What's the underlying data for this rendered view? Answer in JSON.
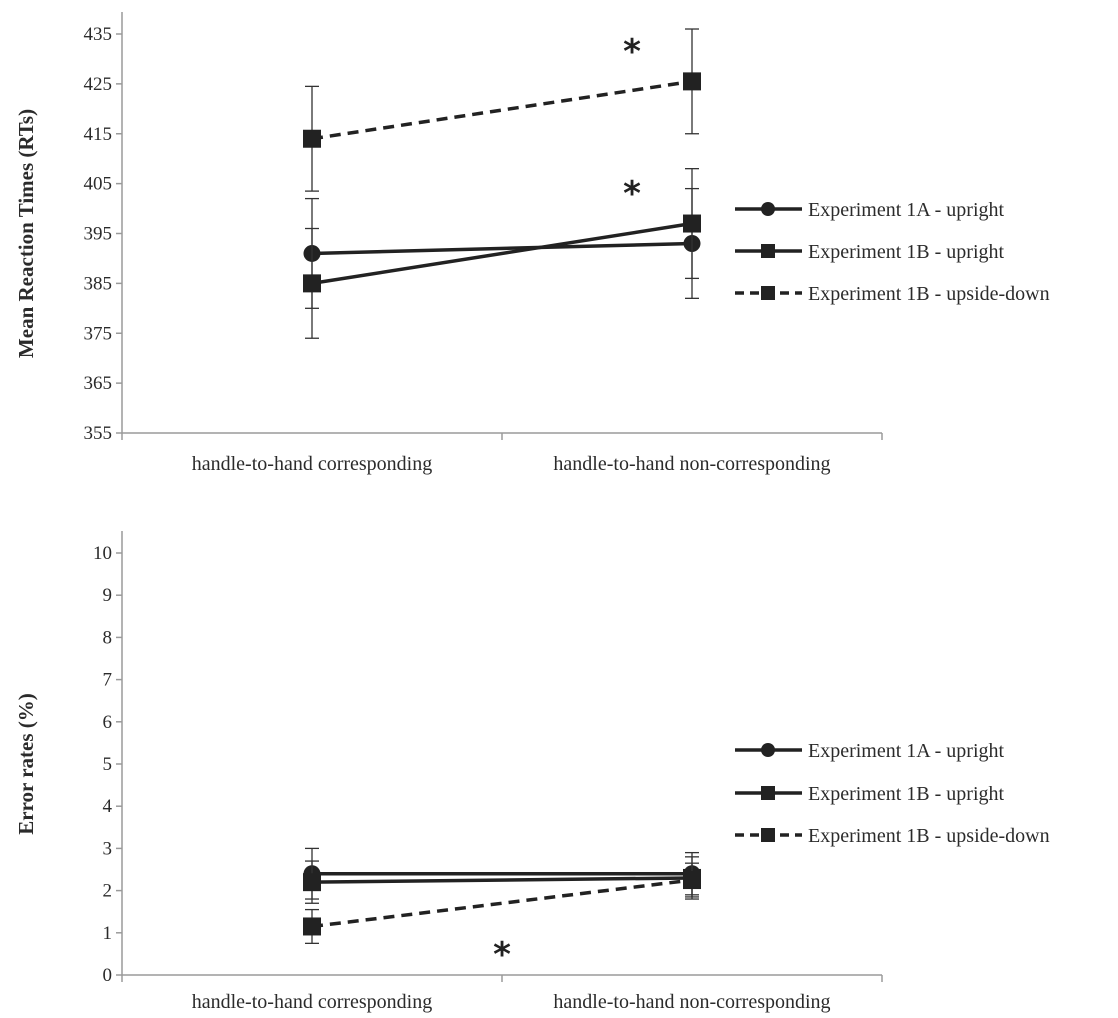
{
  "chart_data": [
    {
      "type": "line",
      "ylabel": "Mean Reaction Times (RTs)",
      "xlabel": "",
      "categories": [
        "handle-to-hand corresponding",
        "handle-to-hand non-corresponding"
      ],
      "ylim": [
        355,
        440
      ],
      "yticks": [
        355,
        365,
        375,
        385,
        395,
        405,
        415,
        425,
        435
      ],
      "grid": false,
      "legend_position": "right",
      "series": [
        {
          "name": "Experiment 1A - upright",
          "marker": "circle",
          "dash": "solid",
          "values": [
            391,
            393
          ],
          "errors": [
            11,
            11
          ]
        },
        {
          "name": "Experiment 1B - upright",
          "marker": "square",
          "dash": "solid",
          "values": [
            385,
            397
          ],
          "errors": [
            11,
            11
          ]
        },
        {
          "name": "Experiment 1B - upside-down",
          "marker": "square",
          "dash": "dashed",
          "values": [
            414,
            425.5
          ],
          "errors": [
            10.5,
            10.5
          ]
        }
      ],
      "annotations": [
        {
          "text": "*",
          "category_index": 1,
          "y": 432
        },
        {
          "text": "*",
          "category_index": 1,
          "y": 403.5
        }
      ]
    },
    {
      "type": "line",
      "ylabel": "Error rates (%)",
      "xlabel": "",
      "categories": [
        "handle-to-hand corresponding",
        "handle-to-hand non-corresponding"
      ],
      "ylim": [
        0,
        10
      ],
      "yticks": [
        0,
        1,
        2,
        3,
        4,
        5,
        6,
        7,
        8,
        9,
        10
      ],
      "grid": false,
      "legend_position": "right",
      "series": [
        {
          "name": "Experiment 1A - upright",
          "marker": "circle",
          "dash": "solid",
          "values": [
            2.4,
            2.4
          ],
          "errors": [
            0.6,
            0.5
          ]
        },
        {
          "name": "Experiment 1B - upright",
          "marker": "square",
          "dash": "solid",
          "values": [
            2.2,
            2.3
          ],
          "errors": [
            0.5,
            0.5
          ]
        },
        {
          "name": "Experiment 1B - upside-down",
          "marker": "square",
          "dash": "dashed",
          "values": [
            1.15,
            2.25
          ],
          "errors": [
            0.4,
            0.4
          ]
        }
      ],
      "annotations": [
        {
          "text": "*",
          "category_index": 0.5,
          "y": 0.55
        }
      ]
    }
  ]
}
